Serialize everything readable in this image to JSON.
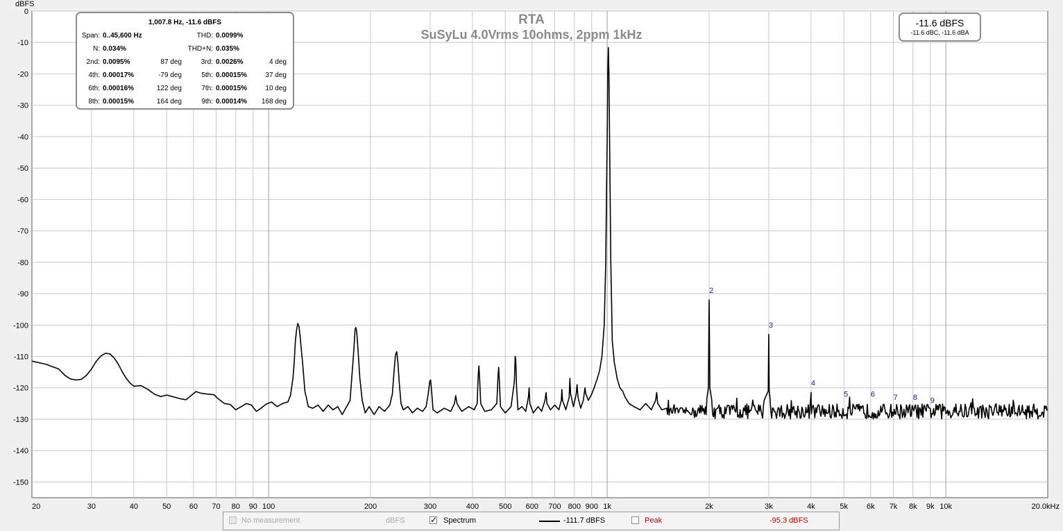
{
  "app": {
    "title": "RTA",
    "subtitle": "SuSyLu 4.0Vrms 10ohms, 2ppm 1kHz"
  },
  "colors": {
    "trace": "#000000",
    "grid": "#c8c8c8",
    "grid_major": "#a0a0a0",
    "harmonic_label": "#1e1e8c",
    "peak_value": "#c00000"
  },
  "stats_panel": {
    "header": "1,007.8 Hz, -11.6 dBFS",
    "span_label": "Span:",
    "span_value": "0..45,600 Hz",
    "thd_label": "THD:",
    "thd_value": "0.0099%",
    "n_label": "N:",
    "n_value": "0.034%",
    "thdn_label": "THD+N:",
    "thdn_value": "0.035%",
    "harmonics": [
      {
        "label": "2nd:",
        "value": "0.0095%",
        "phase": "87 deg"
      },
      {
        "label": "3rd:",
        "value": "0.0026%",
        "phase": "4 deg"
      },
      {
        "label": "4th:",
        "value": "0.00017%",
        "phase": "-79 deg"
      },
      {
        "label": "5th:",
        "value": "0.00015%",
        "phase": "37 deg"
      },
      {
        "label": "6th:",
        "value": "0.00016%",
        "phase": "122 deg"
      },
      {
        "label": "7th:",
        "value": "0.00015%",
        "phase": "10 deg"
      },
      {
        "label": "8th:",
        "value": "0.00015%",
        "phase": "164 deg"
      },
      {
        "label": "9th:",
        "value": "0.00014%",
        "phase": "168 deg"
      }
    ]
  },
  "level_panel": {
    "main": "-11.6 dBFS",
    "sub": "-11.6 dBC, -11.6 dBA"
  },
  "legend": {
    "no_measurement_label": "No measurement",
    "unit_label": "dBFS",
    "spectrum_label": "Spectrum",
    "spectrum_value": "-111.7 dBFS",
    "peak_label": "Peak",
    "peak_value": "-95.3 dBFS",
    "checkmark": "✓"
  },
  "chart_data": {
    "type": "line",
    "title": "RTA",
    "subtitle": "SuSyLu 4.0Vrms 10ohms, 2ppm 1kHz",
    "ylabel": "dBFS",
    "xlabel": "",
    "x_scale": "log",
    "xlim": [
      20,
      20000
    ],
    "ylim": [
      -155,
      0
    ],
    "grid": true,
    "x_ticks": [
      {
        "v": 20,
        "l": "20"
      },
      {
        "v": 30,
        "l": "30"
      },
      {
        "v": 40,
        "l": "40"
      },
      {
        "v": 50,
        "l": "50"
      },
      {
        "v": 60,
        "l": "60"
      },
      {
        "v": 70,
        "l": "70"
      },
      {
        "v": 80,
        "l": "80"
      },
      {
        "v": 90,
        "l": "90"
      },
      {
        "v": 100,
        "l": "100"
      },
      {
        "v": 200,
        "l": "200"
      },
      {
        "v": 300,
        "l": "300"
      },
      {
        "v": 400,
        "l": "400"
      },
      {
        "v": 500,
        "l": "500"
      },
      {
        "v": 600,
        "l": "600"
      },
      {
        "v": 700,
        "l": "700"
      },
      {
        "v": 800,
        "l": "800"
      },
      {
        "v": 900,
        "l": "900"
      },
      {
        "v": 1000,
        "l": "1k"
      },
      {
        "v": 2000,
        "l": "2k"
      },
      {
        "v": 3000,
        "l": "3k"
      },
      {
        "v": 4000,
        "l": "4k"
      },
      {
        "v": 5000,
        "l": "5k"
      },
      {
        "v": 6000,
        "l": "6k"
      },
      {
        "v": 7000,
        "l": "7k"
      },
      {
        "v": 8000,
        "l": "8k"
      },
      {
        "v": 9000,
        "l": "9k"
      },
      {
        "v": 10000,
        "l": "10k"
      },
      {
        "v": 20000,
        "l": "20.0kHz"
      }
    ],
    "y_ticks": [
      0,
      -10,
      -20,
      -30,
      -40,
      -50,
      -60,
      -70,
      -80,
      -90,
      -100,
      -110,
      -120,
      -130,
      -140,
      -150
    ],
    "harmonic_markers": [
      {
        "n": "2",
        "freq": 2000,
        "db": -92
      },
      {
        "n": "3",
        "freq": 3000,
        "db": -103
      },
      {
        "n": "4",
        "freq": 4000,
        "db": -121.5
      },
      {
        "n": "5",
        "freq": 5000,
        "db": -125
      },
      {
        "n": "6",
        "freq": 6000,
        "db": -125
      },
      {
        "n": "7",
        "freq": 7000,
        "db": -126
      },
      {
        "n": "8",
        "freq": 8000,
        "db": -126
      },
      {
        "n": "9",
        "freq": 9000,
        "db": -127
      }
    ],
    "series": [
      {
        "noise_floor_db": -127.5,
        "points": [
          [
            20,
            -111.5
          ],
          [
            22,
            -112.5
          ],
          [
            24,
            -114
          ],
          [
            25,
            -116
          ],
          [
            26,
            -117.2
          ],
          [
            27,
            -117.5
          ],
          [
            28,
            -117.3
          ],
          [
            29,
            -116
          ],
          [
            30,
            -114
          ],
          [
            31,
            -111.5
          ],
          [
            32,
            -109.8
          ],
          [
            33,
            -109
          ],
          [
            34,
            -109.2
          ],
          [
            35,
            -110.5
          ],
          [
            36,
            -112.5
          ],
          [
            37,
            -115
          ],
          [
            38,
            -117
          ],
          [
            39,
            -118.5
          ],
          [
            40,
            -119.5
          ],
          [
            42,
            -119.3
          ],
          [
            44,
            -120.5
          ],
          [
            46,
            -122
          ],
          [
            48,
            -122.8
          ],
          [
            50,
            -122.3
          ],
          [
            52,
            -122.8
          ],
          [
            55,
            -123.5
          ],
          [
            57,
            -123.8
          ],
          [
            59,
            -122.5
          ],
          [
            61,
            -121.2
          ],
          [
            63,
            -121.7
          ],
          [
            66,
            -122
          ],
          [
            69,
            -122.2
          ],
          [
            71,
            -123.5
          ],
          [
            74,
            -125
          ],
          [
            77,
            -125.3
          ],
          [
            80,
            -127
          ],
          [
            83,
            -126
          ],
          [
            86,
            -125
          ],
          [
            89,
            -125.5
          ],
          [
            92,
            -127.5
          ],
          [
            95,
            -126.5
          ],
          [
            98,
            -125.3
          ],
          [
            102,
            -124.5
          ],
          [
            106,
            -126
          ],
          [
            110,
            -125
          ],
          [
            114,
            -124.5
          ],
          [
            116,
            -122.5
          ],
          [
            118,
            -117
          ],
          [
            119,
            -112
          ],
          [
            120,
            -105
          ],
          [
            121,
            -101.5
          ],
          [
            122,
            -99.5
          ],
          [
            123,
            -100.5
          ],
          [
            124,
            -104
          ],
          [
            126,
            -112
          ],
          [
            128,
            -121
          ],
          [
            131,
            -126
          ],
          [
            135,
            -126.5
          ],
          [
            140,
            -125.5
          ],
          [
            145,
            -127.5
          ],
          [
            150,
            -125.5
          ],
          [
            155,
            -127
          ],
          [
            160,
            -126
          ],
          [
            165,
            -128.5
          ],
          [
            170,
            -126
          ],
          [
            174,
            -124
          ],
          [
            176,
            -117
          ],
          [
            178,
            -110
          ],
          [
            179,
            -106
          ],
          [
            180,
            -101.5
          ],
          [
            181,
            -100.8
          ],
          [
            182,
            -102
          ],
          [
            184,
            -109
          ],
          [
            186,
            -117
          ],
          [
            189,
            -124
          ],
          [
            193,
            -128
          ],
          [
            198,
            -126
          ],
          [
            205,
            -128.5
          ],
          [
            212,
            -126
          ],
          [
            220,
            -127.5
          ],
          [
            228,
            -125.5
          ],
          [
            232,
            -122
          ],
          [
            235,
            -114
          ],
          [
            237,
            -109.5
          ],
          [
            239,
            -108.5
          ],
          [
            241,
            -112
          ],
          [
            243,
            -118
          ],
          [
            246,
            -125
          ],
          [
            250,
            -127
          ],
          [
            258,
            -126
          ],
          [
            266,
            -128
          ],
          [
            275,
            -126.5
          ],
          [
            285,
            -127.5
          ],
          [
            292,
            -126
          ],
          [
            296,
            -122
          ],
          [
            299,
            -118
          ],
          [
            301,
            -117.5
          ],
          [
            303,
            -121
          ],
          [
            306,
            -127
          ],
          [
            315,
            -128
          ],
          [
            330,
            -126.5
          ],
          [
            345,
            -127.5
          ],
          [
            354,
            -125
          ],
          [
            357,
            -122.5
          ],
          [
            360,
            -125
          ],
          [
            372,
            -127.5
          ],
          [
            390,
            -126
          ],
          [
            405,
            -127
          ],
          [
            413,
            -125
          ],
          [
            416,
            -116
          ],
          [
            418,
            -113
          ],
          [
            420,
            -117
          ],
          [
            423,
            -125
          ],
          [
            435,
            -127.5
          ],
          [
            455,
            -127
          ],
          [
            472,
            -125
          ],
          [
            476,
            -116
          ],
          [
            478,
            -113.5
          ],
          [
            480,
            -117
          ],
          [
            484,
            -126
          ],
          [
            500,
            -128
          ],
          [
            520,
            -126
          ],
          [
            532,
            -118
          ],
          [
            535,
            -110
          ],
          [
            537,
            -111
          ],
          [
            540,
            -120
          ],
          [
            545,
            -127
          ],
          [
            560,
            -126
          ],
          [
            575,
            -127.5
          ],
          [
            585,
            -123
          ],
          [
            588,
            -120
          ],
          [
            591,
            -125
          ],
          [
            605,
            -128
          ],
          [
            625,
            -126
          ],
          [
            640,
            -127.5
          ],
          [
            655,
            -124
          ],
          [
            660,
            -121.5
          ],
          [
            664,
            -125
          ],
          [
            680,
            -127
          ],
          [
            700,
            -125.5
          ],
          [
            720,
            -127
          ],
          [
            732,
            -124
          ],
          [
            735,
            -120.5
          ],
          [
            738,
            -124
          ],
          [
            755,
            -127
          ],
          [
            772,
            -123
          ],
          [
            776,
            -117
          ],
          [
            780,
            -122
          ],
          [
            795,
            -126
          ],
          [
            810,
            -122
          ],
          [
            815,
            -119
          ],
          [
            820,
            -123
          ],
          [
            835,
            -126.5
          ],
          [
            850,
            -124
          ],
          [
            860,
            -120
          ],
          [
            865,
            -122
          ],
          [
            880,
            -124
          ],
          [
            900,
            -122
          ],
          [
            915,
            -120
          ],
          [
            935,
            -117
          ],
          [
            950,
            -114.5
          ],
          [
            965,
            -110
          ],
          [
            980,
            -100
          ],
          [
            990,
            -80
          ],
          [
            1000,
            -40
          ],
          [
            1004,
            -20
          ],
          [
            1008,
            -11.6
          ],
          [
            1012,
            -20
          ],
          [
            1016,
            -40
          ],
          [
            1025,
            -80
          ],
          [
            1035,
            -105
          ],
          [
            1050,
            -112
          ],
          [
            1070,
            -117
          ],
          [
            1090,
            -120
          ],
          [
            1110,
            -121
          ],
          [
            1130,
            -123
          ],
          [
            1160,
            -125
          ],
          [
            1200,
            -126
          ],
          [
            1250,
            -127
          ],
          [
            1300,
            -125
          ],
          [
            1350,
            -127
          ],
          [
            1390,
            -124
          ],
          [
            1400,
            -121.5
          ],
          [
            1410,
            -125
          ],
          [
            1450,
            -127
          ],
          [
            1550,
            -126
          ],
          [
            1650,
            -127.5
          ],
          [
            1750,
            -126.5
          ],
          [
            1850,
            -127.5
          ],
          [
            1950,
            -126.5
          ],
          [
            1990,
            -120
          ],
          [
            2000,
            -92
          ],
          [
            2010,
            -120
          ],
          [
            2060,
            -127.5
          ],
          [
            2200,
            -127
          ],
          [
            2400,
            -128
          ],
          [
            2600,
            -127
          ],
          [
            2800,
            -128
          ],
          [
            2990,
            -121
          ],
          [
            3000,
            -103
          ],
          [
            3010,
            -121
          ],
          [
            3060,
            -128
          ],
          [
            3400,
            -127.5
          ],
          [
            3800,
            -128
          ],
          [
            3990,
            -125
          ],
          [
            4000,
            -121.5
          ],
          [
            4010,
            -125
          ],
          [
            4400,
            -128
          ],
          [
            4800,
            -127.5
          ],
          [
            5200,
            -128.5
          ],
          [
            5600,
            -127.5
          ],
          [
            6000,
            -127
          ],
          [
            7000,
            -127.5
          ],
          [
            8000,
            -127
          ],
          [
            9000,
            -127.5
          ],
          [
            10000,
            -127
          ],
          [
            12000,
            -127.5
          ],
          [
            14000,
            -127
          ],
          [
            16000,
            -127.5
          ],
          [
            18000,
            -127.5
          ],
          [
            20000,
            -127
          ]
        ]
      }
    ]
  }
}
